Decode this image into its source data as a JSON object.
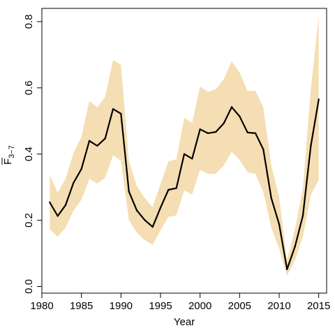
{
  "chart_data": {
    "type": "line",
    "xlabel": "Year",
    "ylabel": "F̄3–7",
    "ylabel_main": "F",
    "ylabel_sub": "3−7",
    "xlim": [
      1980,
      2016
    ],
    "ylim": [
      -0.02,
      0.84
    ],
    "xticks": [
      1980,
      1985,
      1990,
      1995,
      2000,
      2005,
      2010,
      2015
    ],
    "yticks": [
      0.0,
      0.2,
      0.4,
      0.6,
      0.8
    ],
    "ytick_labels": [
      "0.0",
      "0.2",
      "0.4",
      "0.6",
      "0.8"
    ],
    "grid": false,
    "colors": {
      "band": "#f5deb3",
      "line": "#000000",
      "axis": "#000000"
    },
    "x": [
      1981,
      1982,
      1983,
      1984,
      1985,
      1986,
      1987,
      1988,
      1989,
      1990,
      1991,
      1992,
      1993,
      1994,
      1995,
      1996,
      1997,
      1998,
      1999,
      2000,
      2001,
      2002,
      2003,
      2004,
      2005,
      2006,
      2007,
      2008,
      2009,
      2010,
      2011,
      2012,
      2013,
      2014,
      2015
    ],
    "series": [
      {
        "values": [
          0.254,
          0.213,
          0.246,
          0.313,
          0.355,
          0.44,
          0.425,
          0.447,
          0.536,
          0.522,
          0.287,
          0.23,
          0.201,
          0.18,
          0.238,
          0.292,
          0.297,
          0.4,
          0.386,
          0.475,
          0.463,
          0.467,
          0.493,
          0.542,
          0.514,
          0.465,
          0.463,
          0.414,
          0.267,
          0.188,
          0.052,
          0.121,
          0.214,
          0.424,
          0.565
        ],
        "lower": [
          0.173,
          0.15,
          0.178,
          0.229,
          0.262,
          0.325,
          0.311,
          0.329,
          0.396,
          0.38,
          0.2,
          0.163,
          0.14,
          0.126,
          0.17,
          0.21,
          0.215,
          0.29,
          0.278,
          0.353,
          0.34,
          0.341,
          0.365,
          0.407,
          0.382,
          0.345,
          0.34,
          0.285,
          0.177,
          0.114,
          0.033,
          0.08,
          0.151,
          0.276,
          0.322
        ],
        "upper": [
          0.336,
          0.283,
          0.326,
          0.403,
          0.452,
          0.56,
          0.541,
          0.573,
          0.684,
          0.67,
          0.379,
          0.303,
          0.267,
          0.24,
          0.31,
          0.378,
          0.384,
          0.51,
          0.494,
          0.604,
          0.588,
          0.596,
          0.627,
          0.68,
          0.646,
          0.59,
          0.592,
          0.54,
          0.366,
          0.27,
          0.08,
          0.174,
          0.297,
          0.596,
          0.817
        ]
      }
    ]
  }
}
